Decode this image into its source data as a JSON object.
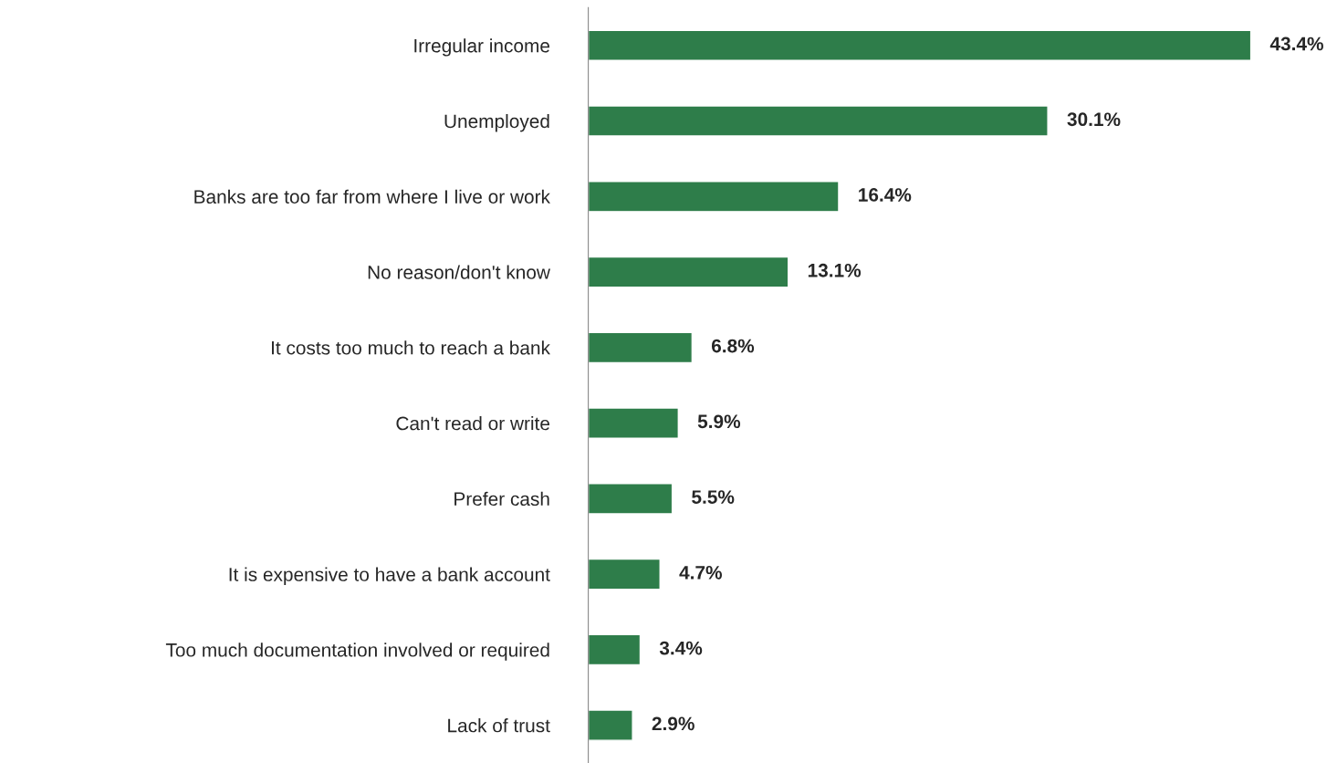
{
  "chart_data": {
    "type": "bar",
    "orientation": "horizontal",
    "categories": [
      "Irregular income",
      "Unemployed",
      "Banks are too far from where I live or work",
      "No reason/don't know",
      "It costs too much to reach a bank",
      "Can't read or write",
      "Prefer cash",
      "It is expensive to have a bank account",
      "Too much documentation involved or required",
      "Lack of trust"
    ],
    "values": [
      43.4,
      30.1,
      16.4,
      13.1,
      6.8,
      5.9,
      5.5,
      4.7,
      3.4,
      2.9
    ],
    "value_labels": [
      "43.4%",
      "30.1%",
      "16.4%",
      "13.1%",
      "6.8%",
      "5.9%",
      "5.5%",
      "4.7%",
      "3.4%",
      "2.9%"
    ],
    "color": "#2e7d4a",
    "tick_labels": "y",
    "grid": false,
    "legend": false
  }
}
